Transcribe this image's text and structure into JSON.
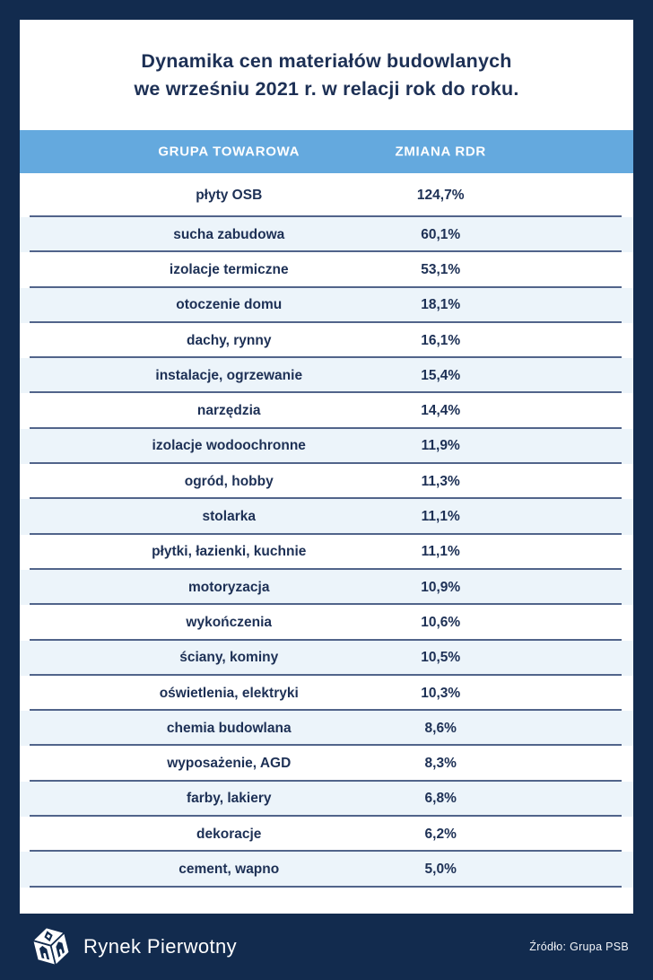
{
  "title": {
    "line1": "Dynamika cen materiałów budowlanych",
    "line2": "we wrześniu 2021 r. w relacji rok do roku."
  },
  "table": {
    "columns": [
      "GRUPA TOWAROWA",
      "ZMIANA RDR"
    ],
    "rows": [
      {
        "label": "płyty OSB",
        "value": "124,7%"
      },
      {
        "label": "sucha zabudowa",
        "value": "60,1%"
      },
      {
        "label": "izolacje termiczne",
        "value": "53,1%"
      },
      {
        "label": "otoczenie domu",
        "value": "18,1%"
      },
      {
        "label": "dachy, rynny",
        "value": "16,1%"
      },
      {
        "label": "instalacje, ogrzewanie",
        "value": "15,4%"
      },
      {
        "label": "narzędzia",
        "value": "14,4%"
      },
      {
        "label": "izolacje wodoochronne",
        "value": "11,9%"
      },
      {
        "label": "ogród, hobby",
        "value": "11,3%"
      },
      {
        "label": "stolarka",
        "value": "11,1%"
      },
      {
        "label": "płytki, łazienki, kuchnie",
        "value": "11,1%"
      },
      {
        "label": "motoryzacja",
        "value": "10,9%"
      },
      {
        "label": "wykończenia",
        "value": "10,6%"
      },
      {
        "label": "ściany, kominy",
        "value": "10,5%"
      },
      {
        "label": "oświetlenia, elektryki",
        "value": "10,3%"
      },
      {
        "label": "chemia budowlana",
        "value": "8,6%"
      },
      {
        "label": "wyposażenie, AGD",
        "value": "8,3%"
      },
      {
        "label": "farby, lakiery",
        "value": "6,8%"
      },
      {
        "label": "dekoracje",
        "value": "6,2%"
      },
      {
        "label": "cement, wapno",
        "value": "5,0%"
      }
    ]
  },
  "footer": {
    "brand": "Rynek Pierwotny",
    "source": "Źródło: Grupa PSB"
  },
  "colors": {
    "navy": "#122b4e",
    "header_blue": "#64a9de",
    "row_alt": "#ecf4fa",
    "separator": "#51648a",
    "text": "#1d3055",
    "white": "#ffffff"
  },
  "chart_data": {
    "type": "table",
    "title": "Dynamika cen materiałów budowlanych we wrześniu 2021 r. w relacji rok do roku.",
    "columns": [
      "GRUPA TOWAROWA",
      "ZMIANA RDR"
    ],
    "categories": [
      "płyty OSB",
      "sucha zabudowa",
      "izolacje termiczne",
      "otoczenie domu",
      "dachy, rynny",
      "instalacje, ogrzewanie",
      "narzędzia",
      "izolacje wodoochronne",
      "ogród, hobby",
      "stolarka",
      "płytki, łazienki, kuchnie",
      "motoryzacja",
      "wykończenia",
      "ściany, kominy",
      "oświetlenia, elektryki",
      "chemia budowlana",
      "wyposażenie, AGD",
      "farby, lakiery",
      "dekoracje",
      "cement, wapno"
    ],
    "values_pct_yoy": [
      124.7,
      60.1,
      53.1,
      18.1,
      16.1,
      15.4,
      14.4,
      11.9,
      11.3,
      11.1,
      11.1,
      10.9,
      10.6,
      10.5,
      10.3,
      8.6,
      8.3,
      6.8,
      6.2,
      5.0
    ],
    "source": "Źródło: Grupa PSB"
  }
}
